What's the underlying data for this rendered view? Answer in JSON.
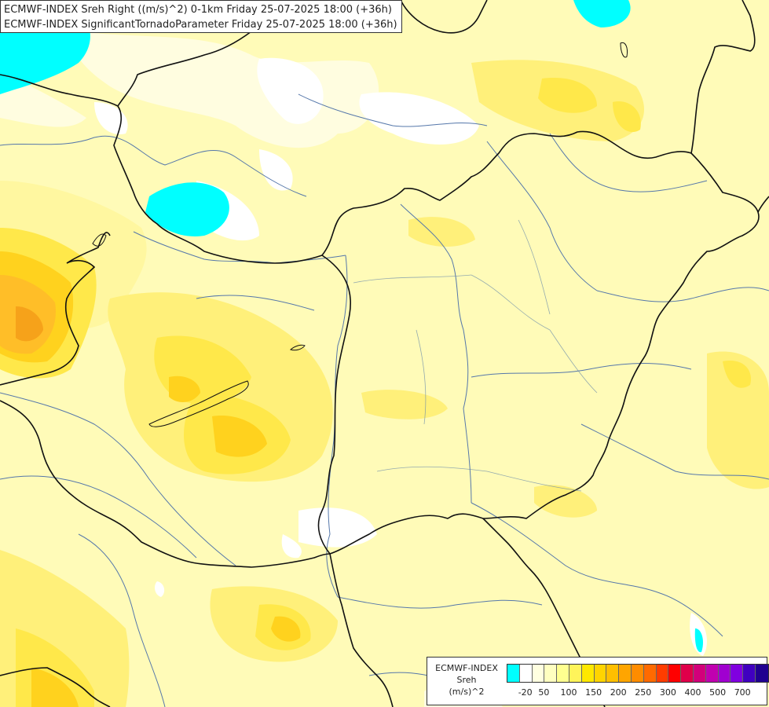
{
  "header": {
    "line1": "ECMWF-INDEX Sreh Right ((m/s)^2) 0-1km Friday 25-07-2025 18:00 (+36h)",
    "line2": "ECMWF-INDEX SignificantTornadoParameter Friday 25-07-2025 18:00 (+36h)"
  },
  "legend": {
    "line1": "ECMWF-INDEX",
    "line2": "Sreh",
    "line3": "(m/s)^2",
    "colors": [
      "#00ffff",
      "#ffffff",
      "#ffffe0",
      "#ffffc0",
      "#ffff90",
      "#fff45a",
      "#ffe800",
      "#ffd400",
      "#ffbf00",
      "#ffa500",
      "#ff8c00",
      "#ff6a00",
      "#ff3c00",
      "#ff0000",
      "#e0004a",
      "#d2007a",
      "#c000b0",
      "#a000d0",
      "#8000e0",
      "#4000c0",
      "#200090"
    ],
    "ticks": [
      "-20",
      "50",
      "100",
      "150",
      "200",
      "250",
      "300",
      "400",
      "500",
      "700"
    ]
  },
  "palette": {
    "base": "#fffbb8",
    "light": "#fffde0",
    "yellow1": "#fff7a0",
    "yellow2": "#fff07a",
    "yellow3": "#ffe84a",
    "gold": "#ffd21e",
    "orange1": "#ffbe28",
    "orange2": "#f6a21a",
    "cyan": "#00ffff",
    "white": "#ffffff",
    "border": "#111111",
    "river": "#5577aa"
  }
}
